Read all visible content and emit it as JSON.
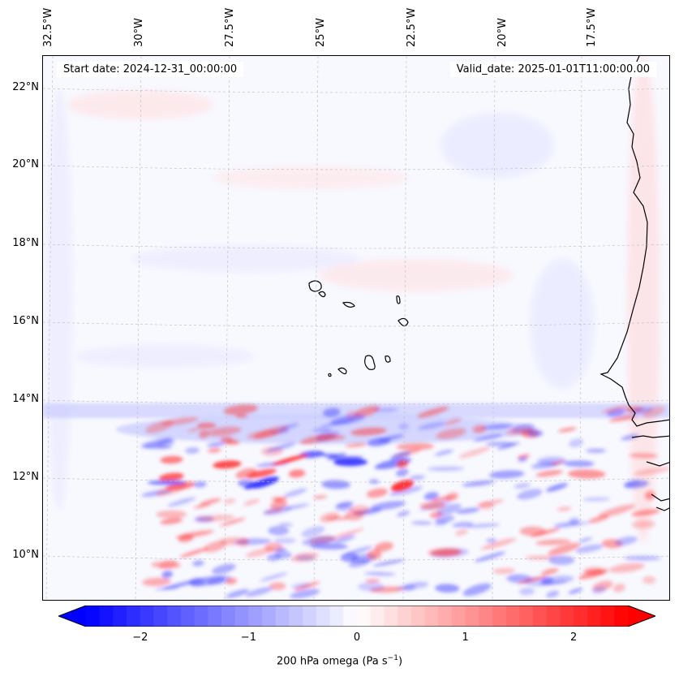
{
  "map": {
    "start_date": "Start date: 2024-12-31_00:00:00",
    "valid_date": "Valid_date: 2025-01-01T11:00:00.00",
    "lon_labels": [
      "32.5°W",
      "30°W",
      "27.5°W",
      "25°W",
      "22.5°W",
      "20°W",
      "17.5°W"
    ],
    "lat_labels": [
      "22°N",
      "20°N",
      "18°N",
      "16°N",
      "14°N",
      "12°N",
      "10°N"
    ]
  },
  "colorbar": {
    "label": "200 hPa omega (Pa s",
    "label_sup": "−1",
    "label_end": ")",
    "ticks": [
      "−2",
      "−1",
      "0",
      "1",
      "2"
    ],
    "tick_values": [
      -2,
      -1,
      0,
      1,
      2
    ],
    "range": [
      -2.5,
      2.5
    ],
    "colors": {
      "negative": "#0000ff",
      "zero": "#ffffff",
      "positive": "#ff0000"
    }
  }
}
